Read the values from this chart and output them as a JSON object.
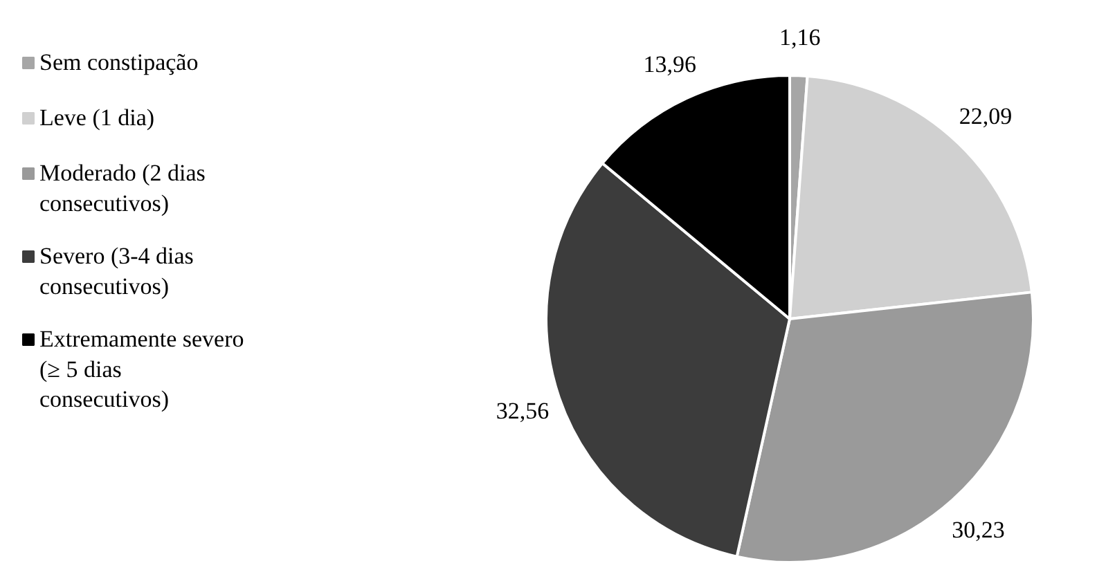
{
  "chart_data": {
    "type": "pie",
    "categories": [
      "Sem constipação",
      "Leve (1 dia)",
      "Moderado (2 dias consecutivos)",
      "Severo (3-4 dias consecutivos)",
      "Extremamente severo (≥ 5 dias consecutivos)"
    ],
    "values": [
      1.16,
      22.09,
      30.23,
      32.56,
      13.96
    ],
    "colors": [
      "#a6a6a6",
      "#d0d0d0",
      "#9a9a9a",
      "#3c3c3c",
      "#000000"
    ],
    "value_labels": [
      "1,16",
      "22,09",
      "30,23",
      "32,56",
      "13,96"
    ],
    "legend": "left"
  }
}
